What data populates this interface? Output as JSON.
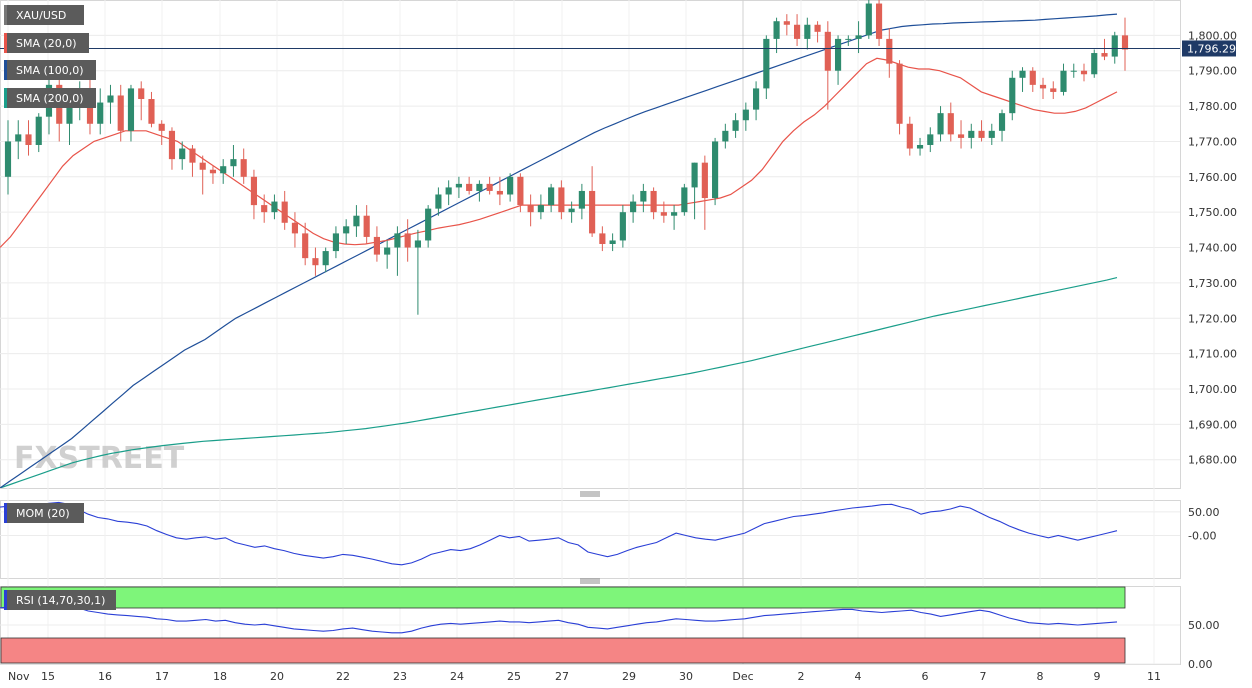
{
  "chart_data": [
    {
      "type": "candlestick",
      "symbol": "XAU/USD",
      "indicators": [
        {
          "name": "SMA (20,0)",
          "color": "#e8544a"
        },
        {
          "name": "SMA (100,0)",
          "color": "#1f4f99"
        },
        {
          "name": "SMA (200,0)",
          "color": "#1a9e8a"
        }
      ],
      "last_price": "1,796.29",
      "y_ticks": [
        "1,680.00",
        "1,690.00",
        "1,700.00",
        "1,710.00",
        "1,720.00",
        "1,730.00",
        "1,740.00",
        "1,750.00",
        "1,760.00",
        "1,770.00",
        "1,780.00",
        "1,790.00",
        "1,800.00"
      ],
      "ylim": [
        1672,
        1810
      ],
      "x_ticks": [
        "Nov",
        "15",
        "16",
        "17",
        "18",
        "20",
        "22",
        "23",
        "24",
        "25",
        "27",
        "29",
        "30",
        "Dec",
        "2",
        "4",
        "6",
        "7",
        "8",
        "9",
        "11"
      ],
      "candles": [
        [
          1760,
          1776,
          1755,
          1770
        ],
        [
          1770,
          1776,
          1765,
          1772
        ],
        [
          1772,
          1776,
          1766,
          1769
        ],
        [
          1769,
          1778,
          1767,
          1777
        ],
        [
          1777,
          1788,
          1772,
          1786
        ],
        [
          1786,
          1789,
          1770,
          1775
        ],
        [
          1775,
          1783,
          1769,
          1781
        ],
        [
          1781,
          1787,
          1776,
          1784
        ],
        [
          1784,
          1789,
          1772,
          1775
        ],
        [
          1775,
          1785,
          1772,
          1781
        ],
        [
          1781,
          1786,
          1775,
          1783
        ],
        [
          1783,
          1786,
          1770,
          1773
        ],
        [
          1773,
          1786,
          1770,
          1785
        ],
        [
          1785,
          1787,
          1776,
          1782
        ],
        [
          1782,
          1784,
          1774,
          1775
        ],
        [
          1775,
          1776,
          1769,
          1773
        ],
        [
          1773,
          1774,
          1762,
          1765
        ],
        [
          1765,
          1770,
          1762,
          1768
        ],
        [
          1768,
          1769,
          1760,
          1764
        ],
        [
          1764,
          1766,
          1755,
          1762
        ],
        [
          1762,
          1763,
          1758,
          1761
        ],
        [
          1761,
          1765,
          1758,
          1763
        ],
        [
          1763,
          1769,
          1760,
          1765
        ],
        [
          1765,
          1768,
          1758,
          1760
        ],
        [
          1760,
          1762,
          1748,
          1752
        ],
        [
          1752,
          1755,
          1747,
          1750
        ],
        [
          1750,
          1755,
          1748,
          1753
        ],
        [
          1753,
          1756,
          1745,
          1747
        ],
        [
          1747,
          1750,
          1740,
          1744
        ],
        [
          1744,
          1747,
          1735,
          1737
        ],
        [
          1737,
          1740,
          1732,
          1735
        ],
        [
          1735,
          1740,
          1733,
          1739
        ],
        [
          1739,
          1746,
          1737,
          1744
        ],
        [
          1744,
          1748,
          1741,
          1746
        ],
        [
          1746,
          1752,
          1743,
          1749
        ],
        [
          1749,
          1752,
          1741,
          1743
        ],
        [
          1743,
          1746,
          1736,
          1738
        ],
        [
          1738,
          1742,
          1734,
          1740
        ],
        [
          1740,
          1746,
          1732,
          1744
        ],
        [
          1744,
          1748,
          1736,
          1740
        ],
        [
          1740,
          1745,
          1721,
          1742
        ],
        [
          1742,
          1752,
          1740,
          1751
        ],
        [
          1751,
          1757,
          1749,
          1755
        ],
        [
          1755,
          1759,
          1752,
          1757
        ],
        [
          1757,
          1760,
          1754,
          1758
        ],
        [
          1758,
          1760,
          1755,
          1756
        ],
        [
          1756,
          1759,
          1753,
          1758
        ],
        [
          1758,
          1760,
          1755,
          1756
        ],
        [
          1756,
          1760,
          1752,
          1755
        ],
        [
          1755,
          1761,
          1753,
          1760
        ],
        [
          1760,
          1761,
          1750,
          1752
        ],
        [
          1752,
          1755,
          1746,
          1750
        ],
        [
          1750,
          1755,
          1748,
          1752
        ],
        [
          1752,
          1758,
          1750,
          1757
        ],
        [
          1757,
          1759,
          1748,
          1750
        ],
        [
          1750,
          1753,
          1747,
          1751
        ],
        [
          1751,
          1758,
          1748,
          1756
        ],
        [
          1756,
          1763,
          1743,
          1744
        ],
        [
          1744,
          1746,
          1739,
          1741
        ],
        [
          1741,
          1744,
          1739,
          1742
        ],
        [
          1742,
          1752,
          1740,
          1750
        ],
        [
          1750,
          1755,
          1747,
          1753
        ],
        [
          1753,
          1758,
          1750,
          1756
        ],
        [
          1756,
          1757,
          1748,
          1750
        ],
        [
          1750,
          1753,
          1747,
          1749
        ],
        [
          1749,
          1752,
          1745,
          1750
        ],
        [
          1750,
          1758,
          1749,
          1757
        ],
        [
          1757,
          1764,
          1748,
          1764
        ],
        [
          1764,
          1766,
          1745,
          1754
        ],
        [
          1754,
          1771,
          1752,
          1770
        ],
        [
          1770,
          1775,
          1768,
          1773
        ],
        [
          1773,
          1778,
          1771,
          1776
        ],
        [
          1776,
          1781,
          1773,
          1779
        ],
        [
          1779,
          1787,
          1776,
          1785
        ],
        [
          1785,
          1800,
          1782,
          1799
        ],
        [
          1799,
          1805,
          1795,
          1804
        ],
        [
          1804,
          1806,
          1800,
          1803
        ],
        [
          1803,
          1806,
          1797,
          1799
        ],
        [
          1799,
          1805,
          1796,
          1803
        ],
        [
          1803,
          1804,
          1798,
          1801
        ],
        [
          1801,
          1804,
          1779,
          1790
        ],
        [
          1790,
          1800,
          1786,
          1799
        ],
        [
          1799,
          1800,
          1797,
          1799
        ],
        [
          1799,
          1804,
          1795,
          1800
        ],
        [
          1800,
          1811,
          1799,
          1809
        ],
        [
          1809,
          1810,
          1797,
          1799
        ],
        [
          1799,
          1802,
          1788,
          1792
        ],
        [
          1792,
          1793,
          1772,
          1775
        ],
        [
          1775,
          1777,
          1766,
          1768
        ],
        [
          1768,
          1771,
          1766,
          1769
        ],
        [
          1769,
          1774,
          1767,
          1772
        ],
        [
          1772,
          1780,
          1770,
          1778
        ],
        [
          1778,
          1781,
          1770,
          1772
        ],
        [
          1772,
          1776,
          1768,
          1771
        ],
        [
          1771,
          1775,
          1768,
          1773
        ],
        [
          1773,
          1776,
          1770,
          1771
        ],
        [
          1771,
          1775,
          1769,
          1773
        ],
        [
          1773,
          1779,
          1770,
          1778
        ],
        [
          1778,
          1790,
          1776,
          1788
        ],
        [
          1788,
          1791,
          1784,
          1790
        ],
        [
          1790,
          1791,
          1784,
          1786
        ],
        [
          1786,
          1788,
          1782,
          1785
        ],
        [
          1785,
          1787,
          1782,
          1784
        ],
        [
          1784,
          1792,
          1783,
          1790
        ],
        [
          1790,
          1792,
          1788,
          1790
        ],
        [
          1790,
          1792,
          1787,
          1789
        ],
        [
          1789,
          1796,
          1788,
          1795
        ],
        [
          1795,
          1799,
          1793,
          1794
        ],
        [
          1794,
          1801,
          1792,
          1800
        ],
        [
          1800,
          1805,
          1790,
          1796
        ]
      ],
      "sma20": [
        1740,
        1743,
        1747,
        1751,
        1755,
        1759,
        1763,
        1766,
        1768,
        1770,
        1771,
        1772,
        1773,
        1773,
        1773,
        1772,
        1771,
        1770,
        1768,
        1766,
        1764,
        1762,
        1760,
        1758,
        1756,
        1754,
        1752,
        1750,
        1748,
        1746,
        1744,
        1742.5,
        1741.5,
        1741,
        1740.8,
        1741,
        1741.5,
        1742,
        1742.7,
        1743.5,
        1744.2,
        1744.8,
        1745.5,
        1746,
        1746.5,
        1747.2,
        1748,
        1749,
        1750,
        1751,
        1752,
        1752,
        1752,
        1752,
        1752,
        1752,
        1752,
        1752,
        1752,
        1752,
        1752,
        1752,
        1752,
        1752,
        1752,
        1752,
        1752.5,
        1753,
        1753.5,
        1754,
        1755,
        1757,
        1759,
        1762,
        1766,
        1770,
        1773,
        1775.5,
        1777.5,
        1780,
        1783,
        1786,
        1789,
        1792,
        1793.5,
        1793,
        1792,
        1791,
        1790.5,
        1790.5,
        1790,
        1789,
        1788,
        1786,
        1784,
        1783,
        1782,
        1781,
        1780,
        1779,
        1778.5,
        1778,
        1778,
        1778.5,
        1779.5,
        1781,
        1782.5,
        1784
      ],
      "sma100": [
        1672,
        1674,
        1676,
        1678,
        1680,
        1682,
        1684,
        1686,
        1688.5,
        1691,
        1693.5,
        1696,
        1698.5,
        1701,
        1703,
        1705,
        1707,
        1709,
        1711,
        1712.5,
        1714,
        1716,
        1718,
        1720,
        1721.5,
        1723,
        1724.5,
        1726,
        1727.5,
        1729,
        1730.5,
        1732,
        1733.5,
        1735,
        1736.5,
        1738,
        1739.5,
        1741,
        1742.5,
        1744,
        1745.5,
        1747,
        1748.5,
        1750,
        1751.5,
        1753,
        1754.5,
        1756,
        1757.5,
        1759,
        1760.5,
        1762,
        1763.5,
        1765,
        1766.5,
        1768,
        1769.5,
        1771,
        1772.5,
        1773.8,
        1775,
        1776.2,
        1777.4,
        1778.5,
        1779.5,
        1780.5,
        1781.5,
        1782.5,
        1783.5,
        1784.5,
        1785.5,
        1786.5,
        1787.5,
        1788.5,
        1789.5,
        1790.5,
        1791.5,
        1792.5,
        1793.5,
        1794.5,
        1795.5,
        1796.5,
        1797.5,
        1798.5,
        1799.5,
        1800.5,
        1801.5,
        1802,
        1802.5,
        1802.8,
        1803,
        1803.2,
        1803.3,
        1803.5,
        1803.6,
        1803.7,
        1803.8,
        1803.9,
        1804,
        1804.1,
        1804.2,
        1804.3,
        1804.5,
        1804.7,
        1804.9,
        1805.1,
        1805.3,
        1805.5,
        1805.8,
        1806
      ],
      "sma200": [
        1672,
        1673,
        1674,
        1675,
        1676,
        1677,
        1678,
        1679,
        1679.8,
        1680.5,
        1681.2,
        1681.8,
        1682.3,
        1682.8,
        1683.2,
        1683.6,
        1684,
        1684.3,
        1684.6,
        1684.9,
        1685.2,
        1685.4,
        1685.6,
        1685.8,
        1686,
        1686.2,
        1686.4,
        1686.6,
        1686.8,
        1687,
        1687.2,
        1687.4,
        1687.6,
        1687.9,
        1688.2,
        1688.5,
        1688.8,
        1689.2,
        1689.6,
        1690,
        1690.4,
        1690.9,
        1691.4,
        1691.9,
        1692.4,
        1692.9,
        1693.4,
        1693.9,
        1694.4,
        1694.9,
        1695.4,
        1695.9,
        1696.4,
        1696.9,
        1697.4,
        1697.9,
        1698.4,
        1698.9,
        1699.4,
        1699.9,
        1700.4,
        1700.9,
        1701.4,
        1701.9,
        1702.4,
        1702.9,
        1703.4,
        1703.9,
        1704.4,
        1705,
        1705.6,
        1706.2,
        1706.8,
        1707.4,
        1708,
        1708.7,
        1709.4,
        1710.1,
        1710.8,
        1711.5,
        1712.2,
        1712.9,
        1713.6,
        1714.3,
        1715,
        1715.7,
        1716.4,
        1717.1,
        1717.8,
        1718.5,
        1719.2,
        1719.9,
        1720.6,
        1721.2,
        1721.8,
        1722.4,
        1723,
        1723.6,
        1724.2,
        1724.8,
        1725.4,
        1726,
        1726.6,
        1727.2,
        1727.8,
        1728.4,
        1729,
        1729.6,
        1730.2,
        1730.8,
        1731.5
      ],
      "watermark": "FXSTREET"
    },
    {
      "type": "line",
      "name": "MOM (20)",
      "y_ticks": [
        "50.00",
        "-0.00"
      ],
      "ylim": [
        -90,
        75
      ],
      "series": [
        {
          "name": "MOM (20)",
          "color": "#2a3fd6",
          "values": [
            60,
            62,
            61,
            60,
            64,
            68,
            70,
            66,
            55,
            45,
            38,
            35,
            30,
            28,
            25,
            20,
            10,
            2,
            -5,
            -8,
            -5,
            -3,
            -8,
            -5,
            -15,
            -20,
            -25,
            -22,
            -28,
            -32,
            -38,
            -42,
            -45,
            -48,
            -45,
            -40,
            -42,
            -46,
            -50,
            -55,
            -60,
            -62,
            -58,
            -50,
            -40,
            -35,
            -30,
            -32,
            -28,
            -20,
            -10,
            0,
            -5,
            -2,
            -12,
            -10,
            -8,
            -5,
            -15,
            -20,
            -35,
            -40,
            -45,
            -40,
            -32,
            -25,
            -20,
            -15,
            -5,
            5,
            0,
            -5,
            -8,
            -10,
            -5,
            0,
            5,
            15,
            25,
            30,
            35,
            40,
            42,
            45,
            48,
            52,
            55,
            58,
            60,
            62,
            65,
            66,
            60,
            55,
            45,
            50,
            52,
            56,
            62,
            58,
            48,
            38,
            30,
            20,
            12,
            5,
            0,
            -5,
            0,
            -5,
            -10,
            -5,
            0,
            5,
            10
          ]
        }
      ]
    },
    {
      "type": "line",
      "name": "RSI (14,70,30,1)",
      "y_ticks": [
        "50.00",
        "0.00"
      ],
      "ylim": [
        0,
        100
      ],
      "series": [
        {
          "name": "RSI (14,70,30,1)",
          "color": "#2a3fd6",
          "values": [
            72,
            73,
            74,
            72,
            75,
            77,
            78,
            76,
            72,
            68,
            66,
            64,
            63,
            62,
            61,
            60,
            58,
            57,
            55,
            55,
            56,
            57,
            55,
            56,
            53,
            51,
            50,
            51,
            49,
            47,
            45,
            44,
            43,
            42,
            43,
            45,
            46,
            44,
            42,
            41,
            40,
            40,
            42,
            46,
            49,
            51,
            52,
            51,
            52,
            53,
            54,
            55,
            54,
            54,
            53,
            54,
            55,
            56,
            53,
            51,
            47,
            46,
            45,
            47,
            49,
            51,
            53,
            54,
            56,
            58,
            57,
            56,
            55,
            55,
            56,
            57,
            58,
            60,
            62,
            63,
            64,
            65,
            66,
            67,
            68,
            69,
            70,
            70,
            68,
            67,
            66,
            67,
            68,
            69,
            66,
            64,
            61,
            63,
            65,
            67,
            69,
            67,
            63,
            59,
            56,
            53,
            52,
            51,
            52,
            51,
            50,
            51,
            52,
            53,
            54
          ]
        }
      ]
    }
  ]
}
